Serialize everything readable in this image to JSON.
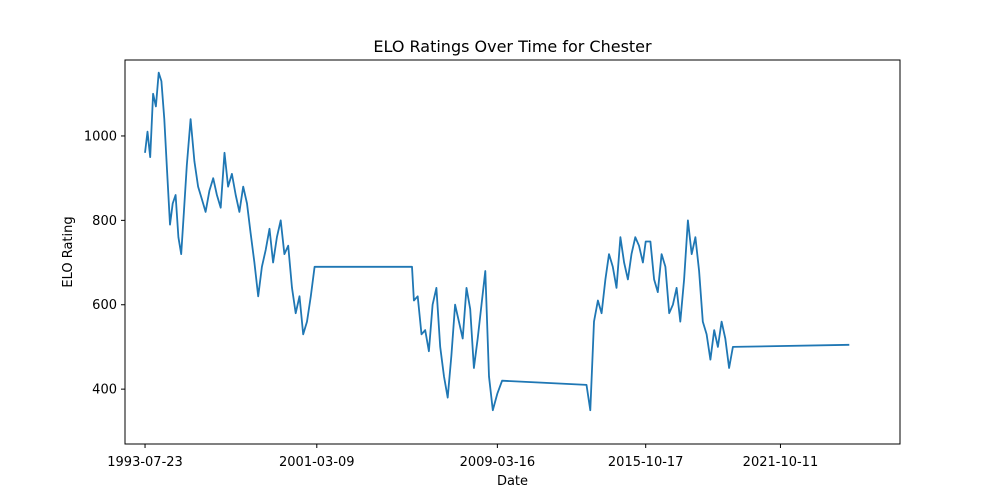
{
  "chart_data": {
    "type": "line",
    "title": "ELO Ratings Over Time for Chester",
    "xlabel": "Date",
    "ylabel": "ELO Rating",
    "x_ticks": [
      "1993-07-23",
      "2001-03-09",
      "2009-03-16",
      "2015-10-17",
      "2021-10-11"
    ],
    "y_ticks": [
      400,
      600,
      800,
      1000
    ],
    "xlim": [
      "1992-09-01",
      "2027-02-01"
    ],
    "ylim": [
      270,
      1180
    ],
    "grid": false,
    "legend": "none",
    "series": [
      {
        "color": "#1f77b4",
        "x": [
          "1993-07-23",
          "1993-09-01",
          "1993-10-15",
          "1993-12-01",
          "1994-01-15",
          "1994-03-01",
          "1994-04-15",
          "1994-06-01",
          "1994-07-15",
          "1994-09-01",
          "1994-10-15",
          "1994-12-01",
          "1995-01-15",
          "1995-03-01",
          "1995-04-15",
          "1995-06-01",
          "1995-08-01",
          "1995-10-01",
          "1995-12-01",
          "1996-02-01",
          "1996-04-01",
          "1996-06-01",
          "1996-08-01",
          "1996-10-01",
          "1996-12-01",
          "1997-02-01",
          "1997-04-01",
          "1997-06-01",
          "1997-08-01",
          "1997-10-01",
          "1997-12-01",
          "1998-02-01",
          "1998-04-01",
          "1998-06-01",
          "1998-08-01",
          "1998-10-01",
          "1998-12-01",
          "1999-02-01",
          "1999-04-01",
          "1999-06-01",
          "1999-08-01",
          "1999-10-01",
          "1999-12-01",
          "2000-02-01",
          "2000-04-01",
          "2000-06-01",
          "2000-08-01",
          "2000-10-01",
          "2000-12-01",
          "2001-02-01",
          "2001-03-09",
          "2005-06-01",
          "2005-07-01",
          "2005-09-01",
          "2005-11-01",
          "2006-01-01",
          "2006-03-01",
          "2006-05-01",
          "2006-07-01",
          "2006-09-01",
          "2006-11-01",
          "2007-01-01",
          "2007-03-01",
          "2007-05-01",
          "2007-07-01",
          "2007-09-01",
          "2007-11-01",
          "2008-01-01",
          "2008-03-01",
          "2008-05-01",
          "2008-07-01",
          "2008-09-01",
          "2008-11-01",
          "2009-01-01",
          "2009-03-16",
          "2009-06-01",
          "2013-03-01",
          "2013-05-01",
          "2013-07-01",
          "2013-09-01",
          "2013-11-01",
          "2014-01-01",
          "2014-03-01",
          "2014-05-01",
          "2014-07-01",
          "2014-09-01",
          "2014-11-01",
          "2015-01-01",
          "2015-03-01",
          "2015-05-01",
          "2015-07-01",
          "2015-09-01",
          "2015-10-17",
          "2016-01-01",
          "2016-03-01",
          "2016-05-01",
          "2016-07-01",
          "2016-09-01",
          "2016-11-01",
          "2017-01-01",
          "2017-03-01",
          "2017-05-01",
          "2017-07-01",
          "2017-09-01",
          "2017-11-01",
          "2018-01-01",
          "2018-03-01",
          "2018-05-01",
          "2018-07-01",
          "2018-09-01",
          "2018-11-01",
          "2019-01-01",
          "2019-03-01",
          "2019-05-01",
          "2019-07-01",
          "2019-09-01",
          "2024-11-01"
        ],
        "values": [
          960,
          1010,
          950,
          1100,
          1070,
          1150,
          1130,
          1040,
          920,
          790,
          840,
          860,
          760,
          720,
          820,
          930,
          1040,
          940,
          880,
          850,
          820,
          870,
          900,
          860,
          830,
          960,
          880,
          910,
          860,
          820,
          880,
          840,
          770,
          700,
          620,
          690,
          730,
          780,
          700,
          760,
          800,
          720,
          740,
          640,
          580,
          620,
          530,
          560,
          620,
          690,
          690,
          690,
          610,
          620,
          530,
          540,
          490,
          600,
          640,
          500,
          430,
          380,
          480,
          600,
          560,
          520,
          640,
          590,
          450,
          520,
          600,
          680,
          430,
          350,
          390,
          420,
          410,
          350,
          560,
          610,
          580,
          660,
          720,
          690,
          640,
          760,
          700,
          660,
          720,
          760,
          740,
          700,
          750,
          750,
          660,
          630,
          720,
          690,
          580,
          600,
          640,
          560,
          660,
          800,
          720,
          760,
          680,
          560,
          530,
          470,
          540,
          500,
          560,
          520,
          450,
          500,
          505
        ]
      }
    ]
  }
}
